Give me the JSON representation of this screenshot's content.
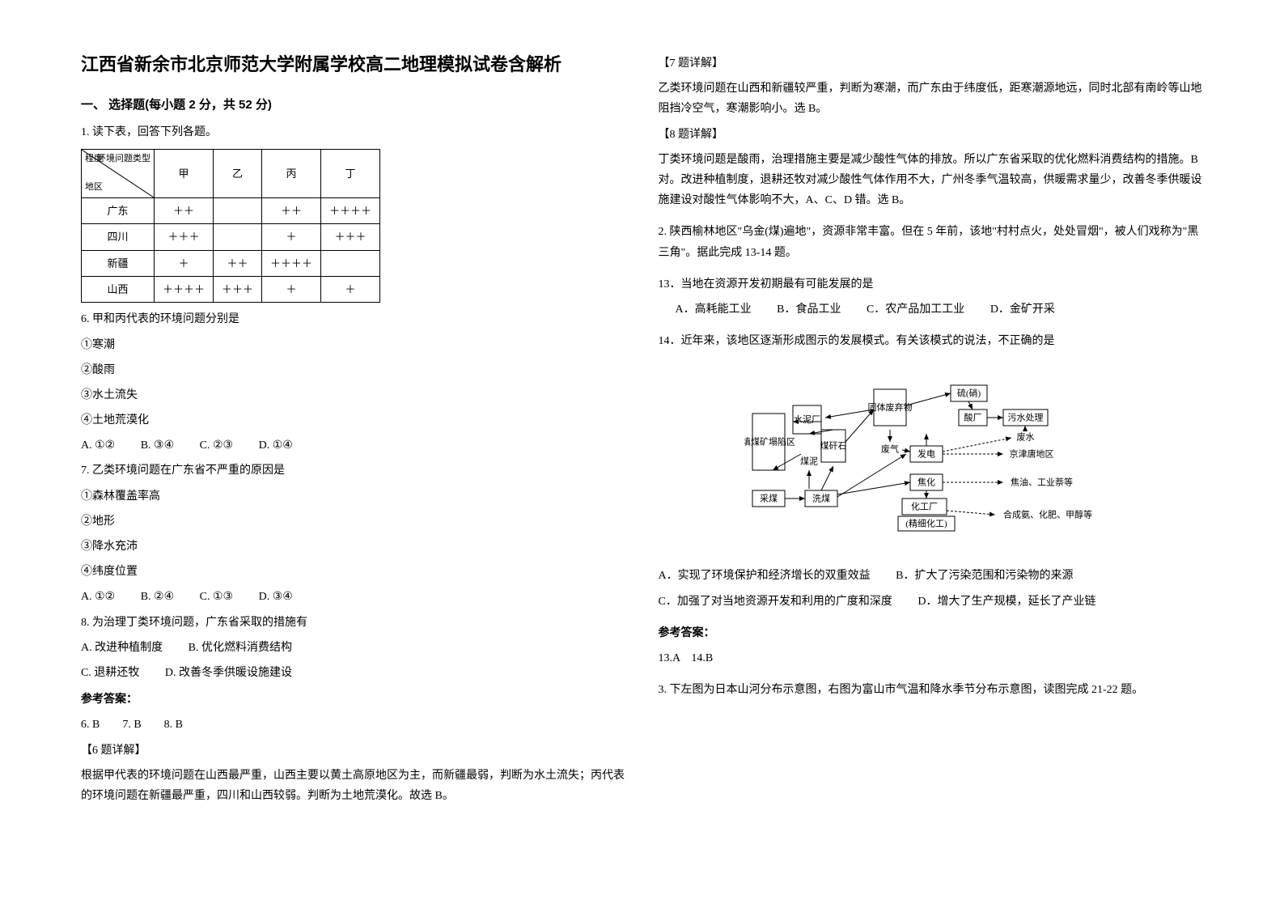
{
  "title": "江西省新余市北京师范大学附属学校高二地理模拟试卷含解析",
  "section1_heading": "一、 选择题(每小题 2 分，共 52 分)",
  "q1_intro": "1. 读下表，回答下列各题。",
  "table1": {
    "diag_top_right": "环境问题类型",
    "diag_top_left": "程度",
    "diag_bottom_left": "地区",
    "cols": [
      "甲",
      "乙",
      "丙",
      "丁"
    ],
    "rows": [
      {
        "region": "广东",
        "cells": [
          "＋＋",
          "",
          "＋＋",
          "＋＋＋＋"
        ]
      },
      {
        "region": "四川",
        "cells": [
          "＋＋＋",
          "",
          "＋",
          "＋＋＋"
        ]
      },
      {
        "region": "新疆",
        "cells": [
          "＋",
          "＋＋",
          "＋＋＋＋",
          ""
        ]
      },
      {
        "region": "山西",
        "cells": [
          "＋＋＋＋",
          "＋＋＋",
          "＋",
          "＋"
        ]
      }
    ]
  },
  "q6_stem": "6. 甲和丙代表的环境问题分别是",
  "q6_items": [
    "①寒潮",
    "②酸雨",
    "③水土流失",
    "④土地荒漠化"
  ],
  "q6_opts": {
    "A": "A. ①②",
    "B": "B. ③④",
    "C": "C. ②③",
    "D": "D. ①④"
  },
  "q7_stem": "7. 乙类环境问题在广东省不严重的原因是",
  "q7_items": [
    "①森林覆盖率高",
    "②地形",
    "③降水充沛",
    "④纬度位置"
  ],
  "q7_opts": {
    "A": "A. ①②",
    "B": "B. ②④",
    "C": "C. ①③",
    "D": "D. ③④"
  },
  "q8_stem": "8. 为治理丁类环境问题，广东省采取的措施有",
  "q8_opts": {
    "A": "A. 改进种植制度",
    "B": "B. 优化燃料消费结构",
    "C": "C. 退耕还牧",
    "D": "D. 改善冬季供暖设施建设"
  },
  "answer_label": "参考答案：",
  "ans_678": "6. B        7. B        8. B",
  "exp6_title": "【6 题详解】",
  "exp6_body": "根据甲代表的环境问题在山西最严重，山西主要以黄土高原地区为主，而新疆最弱，判断为水土流失；丙代表的环境问题在新疆最严重，四川和山西较弱。判断为土地荒漠化。故选 B。",
  "exp7_title": "【7 题详解】",
  "exp7_body": "乙类环境问题在山西和新疆较严重，判断为寒潮，而广东由于纬度低，距寒潮源地远，同时北部有南岭等山地阻挡冷空气，寒潮影响小。选 B。",
  "exp8_title": "【8 题详解】",
  "exp8_body": "丁类环境问题是酸雨，治理措施主要是减少酸性气体的排放。所以广东省采取的优化燃料消费结构的措施。B 对。改进种植制度，退耕还牧对减少酸性气体作用不大，广州冬季气温较高，供暖需求量少，改善冬季供暖设施建设对酸性气体影响不大，A、C、D 错。选 B。",
  "q2_intro": "2. 陕西榆林地区\"乌金(煤)遍地\"，资源非常丰富。但在 5 年前，该地\"村村点火，处处冒烟\"，被人们戏称为\"黑三角\"。据此完成 13-14 题。",
  "q13_stem": "13．当地在资源开发初期最有可能发展的是",
  "q13_opts": {
    "A": "A．高耗能工业",
    "B": "B．食品工业",
    "C": "C．农产品加工工业",
    "D": "D．金矿开采"
  },
  "q14_stem": "14．近年来，该地区逐渐形成图示的发展模式。有关该模式的说法，不正确的是",
  "diagram": {
    "nodes": {
      "caimei": "采煤",
      "ximei": "洗煤",
      "meini": "煤泥",
      "meiganshi": "煤矸石",
      "keng": "填煤矿塌陷区",
      "shuini": "水泥厂",
      "guti": "固体废弃物",
      "feiqi": "废气",
      "fadian": "发电",
      "jiaohua": "焦化",
      "huagong": "化工厂",
      "jingxi": "(精细化工)",
      "liu": "硫(硝)",
      "suanchang": "酸厂",
      "wushui": "污水处理",
      "feishui": "废水",
      "jingjintang": "京津唐地区",
      "jiaoyou": "焦油、工业萘等",
      "hecheng": "合成氨、化肥、甲醇等"
    },
    "box_stroke": "#000000",
    "box_fill": "#ffffff",
    "arrow_stroke": "#000000",
    "font_size": 11
  },
  "q14_opts": {
    "A": "A．实现了环境保护和经济增长的双重效益",
    "B": "B．扩大了污染范围和污染物的来源",
    "C": "C．加强了对当地资源开发和利用的广度和深度",
    "D": "D．增大了生产规模，延长了产业链"
  },
  "ans_1314": "13.A    14.B",
  "q3_intro": "3. 下左图为日本山河分布示意图，右图为富山市气温和降水季节分布示意图，读图完成 21-22 题。",
  "colors": {
    "text": "#000000",
    "bg": "#ffffff",
    "border": "#000000"
  }
}
